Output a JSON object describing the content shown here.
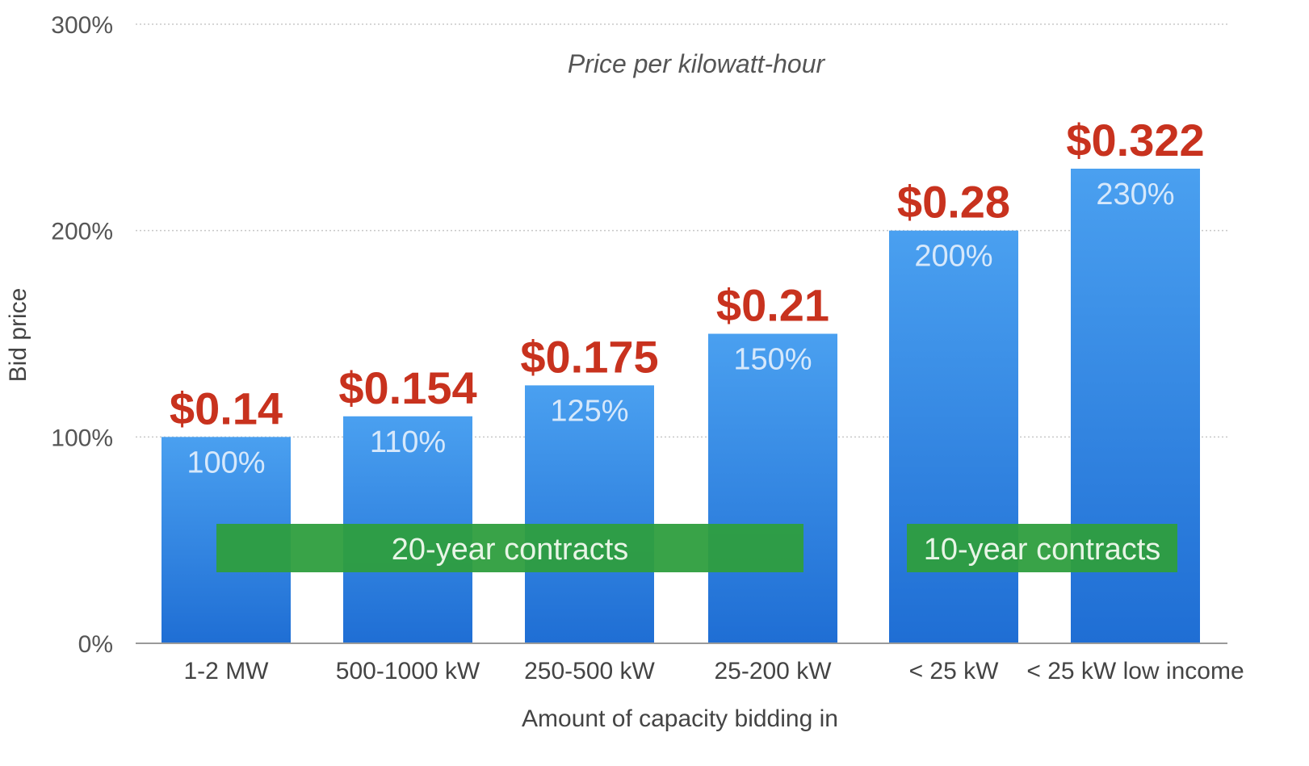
{
  "chart_data": {
    "type": "bar",
    "subtitle": "Price per kilowatt-hour",
    "xlabel": "Amount of capacity bidding in",
    "ylabel": "Bid price",
    "ylim": [
      0,
      300
    ],
    "yticks": [
      "0%",
      "100%",
      "200%",
      "300%"
    ],
    "ytick_values": [
      0,
      100,
      200,
      300
    ],
    "grid": true,
    "categories": [
      "1-2 MW",
      "500-1000 kW",
      "250-500 kW",
      "25-200 kW",
      "< 25 kW",
      "< 25 kW low income"
    ],
    "values": [
      100,
      110,
      125,
      150,
      200,
      230
    ],
    "value_labels": [
      "100%",
      "110%",
      "125%",
      "150%",
      "200%",
      "230%"
    ],
    "price_labels": [
      "$0.14",
      "$0.154",
      "$0.175",
      "$0.21",
      "$0.28",
      "$0.322"
    ],
    "annotations": [
      {
        "text": "20-year contracts",
        "from_category": 0,
        "to_category": 3
      },
      {
        "text": "10-year contracts",
        "from_category": 4,
        "to_category": 5
      }
    ],
    "colors": {
      "bar_top": "#4aa0f0",
      "bar_bottom": "#1f6ed4",
      "price": "#c8321e",
      "band": "#2e9e3e"
    }
  }
}
